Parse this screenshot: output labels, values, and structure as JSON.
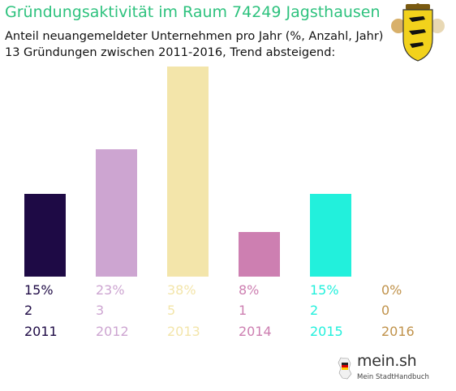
{
  "header": {
    "title": "Gründungsaktivität im Raum 74249 Jagsthausen",
    "subtitle_1": "Anteil neuangemeldeter Unternehmen pro Jahr (%, Anzahl, Jahr)",
    "subtitle_2": "13 Gründungen zwischen 2011-2016, Trend absteigend:"
  },
  "crest": {
    "icon": "baden-wuerttemberg-coat-of-arms-icon"
  },
  "colors": {
    "title": "#2ec27e",
    "bars": [
      "#1e0a45",
      "#cda5d1",
      "#f3e5aa",
      "#cd7fb1",
      "#22f0dc",
      "#c0924a"
    ]
  },
  "chart_data": {
    "type": "bar",
    "categories": [
      "2011",
      "2012",
      "2013",
      "2014",
      "2015",
      "2016"
    ],
    "series": [
      {
        "values": [
          15,
          23,
          38,
          8,
          15,
          0
        ]
      },
      {
        "values": [
          2,
          3,
          5,
          1,
          2,
          0
        ]
      }
    ],
    "percent_labels": [
      "15%",
      "23%",
      "38%",
      "8%",
      "15%",
      "0%"
    ],
    "count_labels": [
      "2",
      "3",
      "5",
      "1",
      "2",
      "0"
    ],
    "ylim": [
      0,
      38
    ],
    "grid": false,
    "legend": "none"
  },
  "logo": {
    "name": "mein.sh",
    "tagline": "Mein StadtHandbuch",
    "icon": "germany-map-pin-icon"
  }
}
